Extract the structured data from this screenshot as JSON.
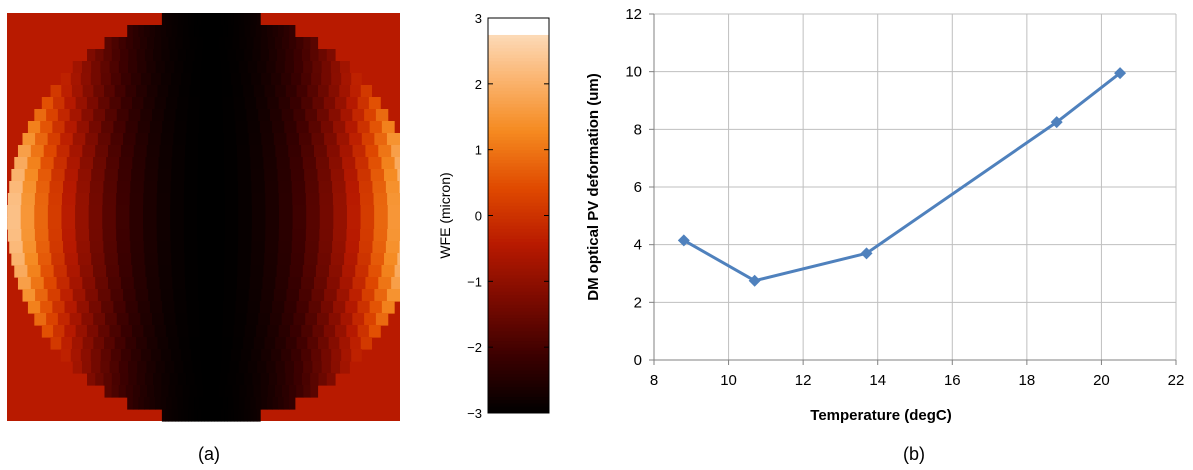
{
  "panel_labels": {
    "a": "(a)",
    "b": "(b)"
  },
  "chart_data": [
    {
      "type": "heatmap",
      "description_label": "WFE map",
      "colorbar": {
        "label": "WFE (micron)",
        "range": [
          -3,
          3
        ],
        "ticks": [
          "3",
          "2",
          "1",
          "0",
          "−1",
          "−2",
          "−3"
        ],
        "tick_values": [
          3,
          2,
          1,
          0,
          -1,
          -2,
          -3
        ],
        "data_max": 2.75,
        "colormap": [
          "#000000",
          "#3a0000",
          "#7a0a00",
          "#b81a00",
          "#e04a00",
          "#f58a20",
          "#fbb877",
          "#fde8d2"
        ]
      },
      "background_color": "#b81a00",
      "profile": {
        "center_value": -3,
        "edge_value": 2.7,
        "exponent": 2.2
      }
    },
    {
      "type": "line",
      "xlabel": "Temperature (degC)",
      "ylabel": "DM optical PV deformation (um)",
      "xlim": [
        8,
        22
      ],
      "ylim": [
        0,
        12
      ],
      "xticks": [
        8,
        10,
        12,
        14,
        16,
        18,
        20,
        22
      ],
      "yticks": [
        0,
        2,
        4,
        6,
        8,
        10,
        12
      ],
      "grid": true,
      "series": [
        {
          "color": "#4f81bd",
          "x": [
            8.8,
            10.7,
            13.7,
            18.8,
            20.5
          ],
          "y": [
            4.15,
            2.75,
            3.7,
            8.25,
            9.95
          ]
        }
      ]
    }
  ]
}
